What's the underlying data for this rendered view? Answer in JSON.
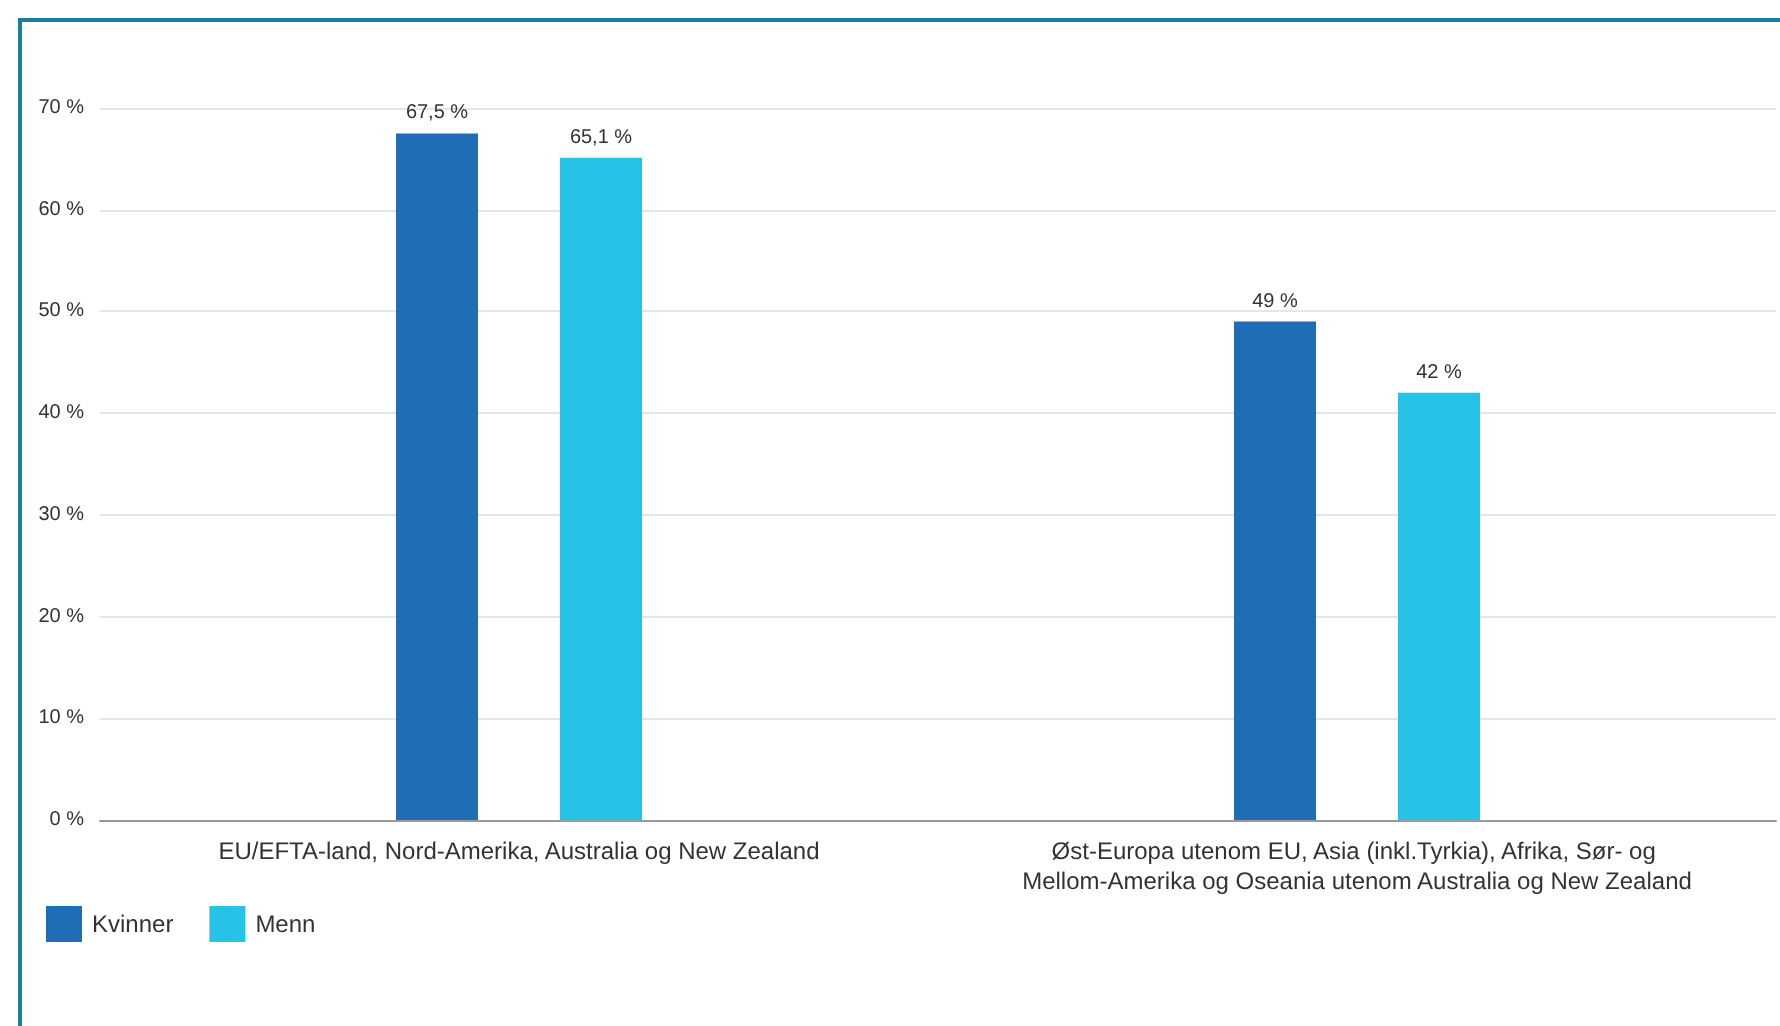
{
  "chart_data": {
    "type": "bar",
    "categories": [
      "EU/EFTA-land, Nord-Amerika, Australia og New Zealand",
      "Øst-Europa utenom EU, Asia (inkl.Tyrkia), Afrika, Sør- og Mellom-Amerika og Oseania utenom Australia og New Zealand"
    ],
    "series": [
      {
        "name": "Kvinner",
        "color": "#1f6eb5",
        "values": [
          67.5,
          49
        ],
        "value_labels": [
          "67,5 %",
          "49 %"
        ]
      },
      {
        "name": "Menn",
        "color": "#27c3e6",
        "values": [
          65.1,
          42
        ],
        "value_labels": [
          "65,1 %",
          "42 %"
        ]
      }
    ],
    "ylim": [
      0,
      70
    ],
    "yticks": [
      {
        "value": 0,
        "label": "0 %"
      },
      {
        "value": 10,
        "label": "10 %"
      },
      {
        "value": 20,
        "label": "20 %"
      },
      {
        "value": 30,
        "label": "30 %"
      },
      {
        "value": 40,
        "label": "40 %"
      },
      {
        "value": 50,
        "label": "50 %"
      },
      {
        "value": 60,
        "label": "60 %"
      },
      {
        "value": 70,
        "label": "70 %"
      }
    ],
    "grid": "y",
    "legend": "bottom left"
  }
}
